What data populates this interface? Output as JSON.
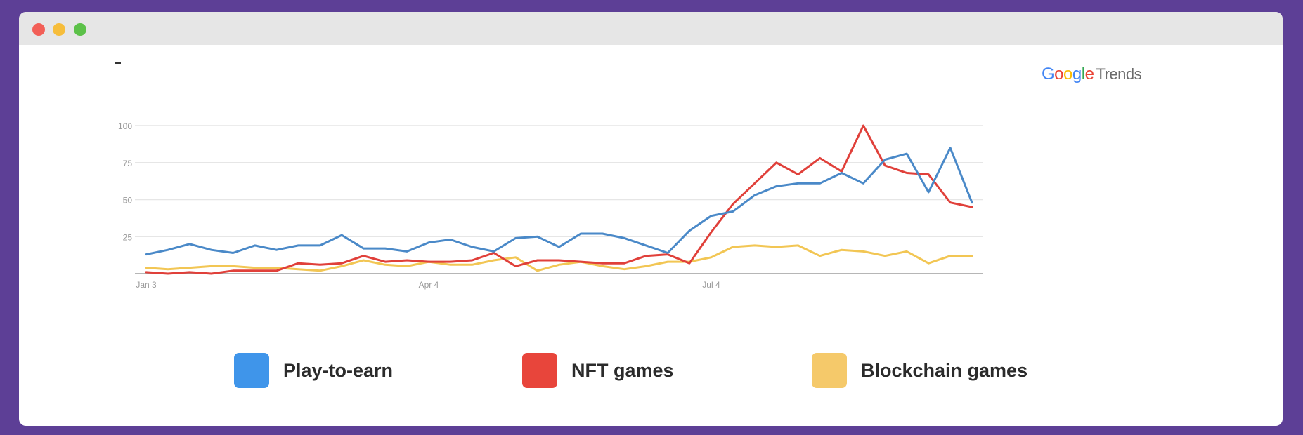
{
  "logo": {
    "google_letters": [
      "G",
      "o",
      "o",
      "g",
      "l",
      "e"
    ],
    "trends": "Trends"
  },
  "colors": {
    "background": "#5d3f96",
    "play_to_earn": "#4a89c8",
    "nft_games": "#e0403a",
    "blockchain_games": "#f2c654",
    "legend_play_to_earn": "#3f95ea",
    "legend_nft_games": "#e8453b",
    "legend_blockchain_games": "#f5c96a"
  },
  "chart_data": {
    "type": "line",
    "title": "",
    "xlabel": "",
    "ylabel": "",
    "ylim": [
      0,
      100
    ],
    "yticks": [
      100,
      75,
      50,
      25
    ],
    "x_tick_labels": [
      "Jan 3",
      "Apr 4",
      "Jul 4"
    ],
    "x_tick_index": [
      0,
      13,
      26
    ],
    "grid": true,
    "legend_position": "bottom",
    "series": [
      {
        "name": "Play-to-earn",
        "color": "#4a89c8",
        "values": [
          13,
          16,
          20,
          16,
          14,
          19,
          16,
          19,
          19,
          26,
          17,
          17,
          15,
          21,
          23,
          18,
          15,
          24,
          25,
          18,
          27,
          27,
          24,
          19,
          14,
          29,
          39,
          42,
          53,
          59,
          61,
          61,
          68,
          61,
          77,
          81,
          55,
          85,
          48
        ]
      },
      {
        "name": "NFT games",
        "color": "#e0403a",
        "values": [
          1,
          0,
          1,
          0,
          2,
          2,
          2,
          7,
          6,
          7,
          12,
          8,
          9,
          8,
          8,
          9,
          14,
          5,
          9,
          9,
          8,
          7,
          7,
          12,
          13,
          7,
          28,
          47,
          61,
          75,
          67,
          78,
          69,
          100,
          73,
          68,
          67,
          48,
          45
        ]
      },
      {
        "name": "Blockchain games",
        "color": "#f2c654",
        "values": [
          4,
          3,
          4,
          5,
          5,
          4,
          4,
          3,
          2,
          5,
          9,
          6,
          5,
          8,
          6,
          6,
          9,
          11,
          2,
          6,
          8,
          5,
          3,
          5,
          8,
          8,
          11,
          18,
          19,
          18,
          19,
          12,
          16,
          15,
          12,
          15,
          7,
          12,
          12
        ]
      }
    ]
  },
  "legend": [
    {
      "label": "Play-to-earn"
    },
    {
      "label": "NFT games"
    },
    {
      "label": "Blockchain games"
    }
  ]
}
